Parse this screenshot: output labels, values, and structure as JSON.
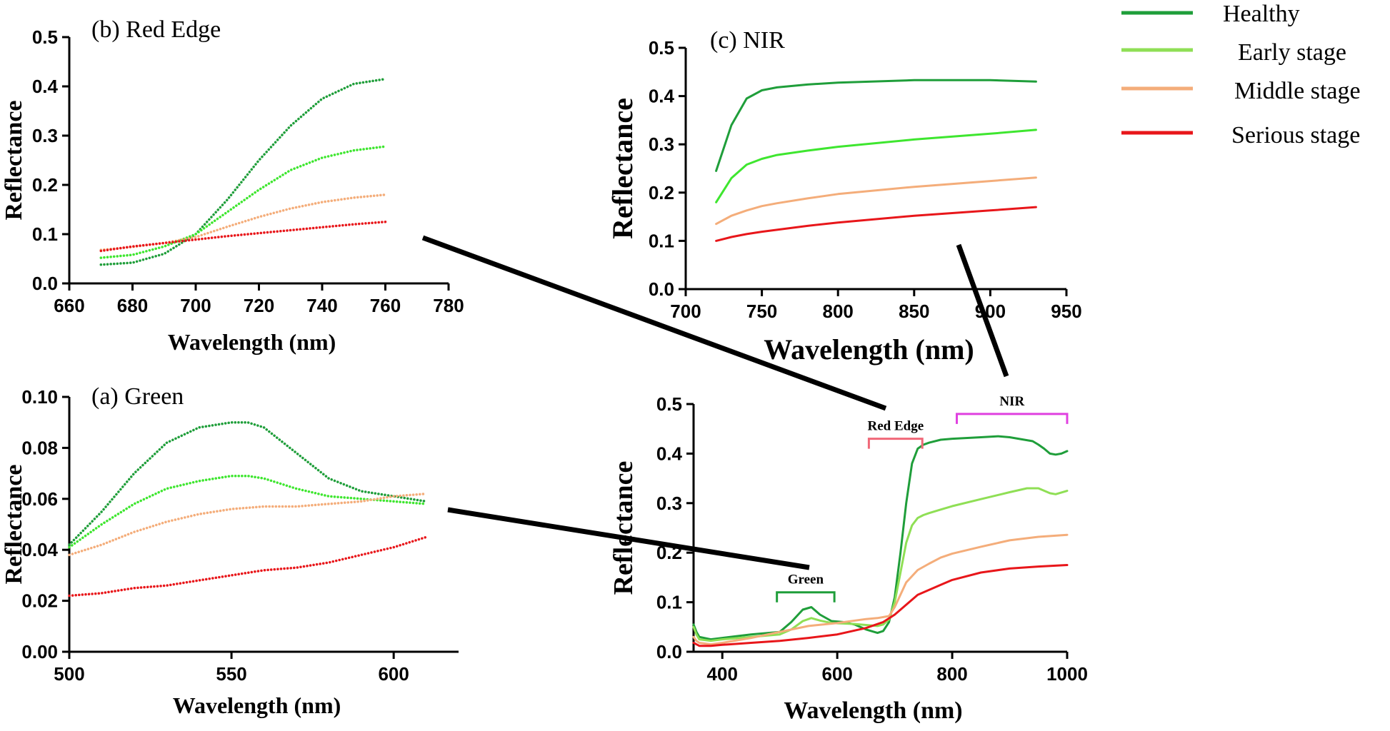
{
  "legend": {
    "entries": [
      {
        "label": "Healthy",
        "color": "#1f9e3a"
      },
      {
        "label": "Early stage",
        "color": "#8fdf55"
      },
      {
        "label": "Middle stage",
        "color": "#f4ad7a"
      },
      {
        "label": "Serious stage",
        "color": "#e8161a"
      }
    ]
  },
  "chart_data": [
    {
      "id": "red_edge",
      "type": "line",
      "title": "(b) Red Edge",
      "xlabel": "Wavelength (nm)",
      "ylabel": "Reflectance",
      "xlim": [
        660,
        780
      ],
      "ylim": [
        0,
        0.5
      ],
      "xticks": [
        "660",
        "680",
        "700",
        "720",
        "740",
        "760",
        "780"
      ],
      "yticks": [
        "0.0",
        "0.1",
        "0.2",
        "0.3",
        "0.4",
        "0.5"
      ],
      "line_style": "dotted",
      "series": [
        {
          "legend_index": 0,
          "color": "#1f9e3a",
          "x": [
            670,
            680,
            690,
            700,
            710,
            720,
            730,
            740,
            750,
            760
          ],
          "y": [
            0.038,
            0.042,
            0.06,
            0.1,
            0.17,
            0.25,
            0.32,
            0.375,
            0.405,
            0.415
          ]
        },
        {
          "legend_index": 1,
          "color": "#3ee62f",
          "x": [
            670,
            680,
            690,
            700,
            710,
            720,
            730,
            740,
            750,
            760
          ],
          "y": [
            0.052,
            0.058,
            0.075,
            0.1,
            0.145,
            0.19,
            0.23,
            0.255,
            0.27,
            0.278
          ]
        },
        {
          "legend_index": 2,
          "color": "#f4ad7a",
          "x": [
            670,
            680,
            690,
            700,
            710,
            720,
            730,
            740,
            750,
            760
          ],
          "y": [
            0.068,
            0.074,
            0.082,
            0.094,
            0.115,
            0.135,
            0.152,
            0.165,
            0.174,
            0.18
          ]
        },
        {
          "legend_index": 3,
          "color": "#e8161a",
          "x": [
            670,
            680,
            690,
            700,
            710,
            720,
            730,
            740,
            750,
            760
          ],
          "y": [
            0.066,
            0.075,
            0.082,
            0.089,
            0.096,
            0.102,
            0.108,
            0.114,
            0.12,
            0.125
          ]
        }
      ]
    },
    {
      "id": "nir",
      "type": "line",
      "title": "(c) NIR",
      "xlabel": "Wavelength (nm)",
      "ylabel": "Reflectance",
      "xlim": [
        700,
        950
      ],
      "ylim": [
        0,
        0.5
      ],
      "xticks": [
        "700",
        "750",
        "800",
        "850",
        "900",
        "950"
      ],
      "yticks": [
        "0.0",
        "0.1",
        "0.2",
        "0.3",
        "0.4",
        "0.5"
      ],
      "line_style": "solid",
      "series": [
        {
          "legend_index": 0,
          "color": "#1f9e3a",
          "x": [
            720,
            730,
            740,
            750,
            760,
            780,
            800,
            850,
            900,
            930
          ],
          "y": [
            0.245,
            0.34,
            0.395,
            0.412,
            0.418,
            0.424,
            0.428,
            0.433,
            0.433,
            0.43
          ]
        },
        {
          "legend_index": 1,
          "color": "#3ee62f",
          "x": [
            720,
            730,
            740,
            750,
            760,
            780,
            800,
            850,
            900,
            930
          ],
          "y": [
            0.18,
            0.23,
            0.258,
            0.27,
            0.278,
            0.287,
            0.295,
            0.31,
            0.322,
            0.33
          ]
        },
        {
          "legend_index": 2,
          "color": "#f4ad7a",
          "x": [
            720,
            730,
            740,
            750,
            760,
            780,
            800,
            850,
            900,
            930
          ],
          "y": [
            0.135,
            0.152,
            0.163,
            0.172,
            0.178,
            0.188,
            0.197,
            0.212,
            0.224,
            0.231
          ]
        },
        {
          "legend_index": 3,
          "color": "#e8161a",
          "x": [
            720,
            730,
            740,
            750,
            760,
            780,
            800,
            850,
            900,
            930
          ],
          "y": [
            0.1,
            0.108,
            0.114,
            0.119,
            0.123,
            0.131,
            0.138,
            0.152,
            0.163,
            0.17
          ]
        }
      ]
    },
    {
      "id": "green",
      "type": "line",
      "title": "(a) Green",
      "xlabel": "Wavelength (nm)",
      "ylabel": "Reflectance",
      "xlim": [
        500,
        620
      ],
      "ylim": [
        0,
        0.1
      ],
      "xticks": [
        "500",
        "550",
        "600"
      ],
      "yticks": [
        "0.00",
        "0.02",
        "0.04",
        "0.06",
        "0.08",
        "0.10"
      ],
      "line_style": "dotted",
      "series": [
        {
          "legend_index": 0,
          "color": "#1f9e3a",
          "x": [
            500,
            510,
            520,
            530,
            540,
            550,
            555,
            560,
            570,
            580,
            590,
            600,
            610
          ],
          "y": [
            0.042,
            0.055,
            0.07,
            0.082,
            0.088,
            0.09,
            0.09,
            0.088,
            0.078,
            0.068,
            0.063,
            0.061,
            0.059
          ]
        },
        {
          "legend_index": 1,
          "color": "#3ee62f",
          "x": [
            500,
            510,
            520,
            530,
            540,
            550,
            555,
            560,
            570,
            580,
            590,
            600,
            610
          ],
          "y": [
            0.041,
            0.05,
            0.058,
            0.064,
            0.067,
            0.069,
            0.069,
            0.068,
            0.064,
            0.061,
            0.06,
            0.059,
            0.058
          ]
        },
        {
          "legend_index": 2,
          "color": "#f4ad7a",
          "x": [
            500,
            510,
            520,
            530,
            540,
            550,
            560,
            570,
            580,
            590,
            600,
            610
          ],
          "y": [
            0.038,
            0.042,
            0.047,
            0.051,
            0.054,
            0.056,
            0.057,
            0.057,
            0.058,
            0.059,
            0.061,
            0.062
          ]
        },
        {
          "legend_index": 3,
          "color": "#e8161a",
          "x": [
            500,
            510,
            520,
            530,
            540,
            550,
            560,
            570,
            580,
            590,
            600,
            610
          ],
          "y": [
            0.022,
            0.023,
            0.025,
            0.026,
            0.028,
            0.03,
            0.032,
            0.033,
            0.035,
            0.038,
            0.041,
            0.045
          ]
        }
      ]
    },
    {
      "id": "full",
      "type": "line",
      "title": "",
      "xlabel": "Wavelength (nm)",
      "ylabel": "Reflectance",
      "xlim": [
        350,
        1000
      ],
      "ylim": [
        0,
        0.5
      ],
      "xticks": [
        "400",
        "600",
        "800",
        "1000"
      ],
      "yticks": [
        "0.0",
        "0.1",
        "0.2",
        "0.3",
        "0.4",
        "0.5"
      ],
      "line_style": "solid",
      "annotations": [
        {
          "label": "Green",
          "x_range": [
            495,
            595
          ],
          "y": 0.12,
          "color": "#1f9e3a"
        },
        {
          "label": "Red Edge",
          "x_range": [
            655,
            748
          ],
          "y": 0.43,
          "color": "#f06878"
        },
        {
          "label": "NIR",
          "x_range": [
            808,
            1000
          ],
          "y": 0.48,
          "color": "#e040e0"
        }
      ],
      "series": [
        {
          "legend_index": 0,
          "color": "#1f9e3a",
          "x": [
            350,
            355,
            360,
            380,
            400,
            450,
            500,
            520,
            540,
            555,
            570,
            590,
            610,
            630,
            650,
            670,
            680,
            690,
            700,
            710,
            720,
            730,
            740,
            750,
            760,
            780,
            800,
            850,
            880,
            900,
            940,
            950,
            960,
            970,
            980,
            990,
            1000
          ],
          "y": [
            0.055,
            0.04,
            0.03,
            0.025,
            0.028,
            0.035,
            0.04,
            0.06,
            0.085,
            0.09,
            0.075,
            0.062,
            0.06,
            0.055,
            0.045,
            0.038,
            0.042,
            0.06,
            0.11,
            0.2,
            0.3,
            0.38,
            0.41,
            0.418,
            0.422,
            0.428,
            0.43,
            0.433,
            0.435,
            0.433,
            0.425,
            0.418,
            0.41,
            0.4,
            0.398,
            0.4,
            0.405
          ]
        },
        {
          "legend_index": 1,
          "color": "#8fdf55",
          "x": [
            350,
            355,
            360,
            380,
            400,
            450,
            500,
            520,
            540,
            555,
            570,
            590,
            610,
            630,
            650,
            670,
            680,
            690,
            700,
            710,
            720,
            730,
            740,
            750,
            760,
            780,
            800,
            850,
            900,
            930,
            950,
            970,
            980,
            1000
          ],
          "y": [
            0.05,
            0.035,
            0.025,
            0.022,
            0.025,
            0.03,
            0.035,
            0.045,
            0.062,
            0.068,
            0.063,
            0.058,
            0.057,
            0.056,
            0.054,
            0.052,
            0.055,
            0.065,
            0.1,
            0.16,
            0.22,
            0.255,
            0.27,
            0.276,
            0.28,
            0.287,
            0.294,
            0.308,
            0.322,
            0.33,
            0.33,
            0.32,
            0.318,
            0.325
          ]
        },
        {
          "legend_index": 2,
          "color": "#f4ad7a",
          "x": [
            350,
            355,
            360,
            380,
            400,
            450,
            500,
            550,
            600,
            650,
            670,
            690,
            700,
            720,
            740,
            760,
            780,
            800,
            850,
            900,
            950,
            1000
          ],
          "y": [
            0.03,
            0.022,
            0.018,
            0.015,
            0.018,
            0.028,
            0.04,
            0.052,
            0.058,
            0.066,
            0.068,
            0.072,
            0.09,
            0.14,
            0.165,
            0.178,
            0.19,
            0.198,
            0.212,
            0.225,
            0.232,
            0.236
          ]
        },
        {
          "legend_index": 3,
          "color": "#e8161a",
          "x": [
            350,
            355,
            360,
            380,
            400,
            450,
            500,
            550,
            600,
            650,
            680,
            700,
            720,
            740,
            760,
            780,
            800,
            850,
            900,
            950,
            1000
          ],
          "y": [
            0.018,
            0.015,
            0.012,
            0.012,
            0.014,
            0.018,
            0.022,
            0.028,
            0.035,
            0.048,
            0.06,
            0.075,
            0.095,
            0.115,
            0.125,
            0.135,
            0.145,
            0.16,
            0.168,
            0.172,
            0.175
          ]
        }
      ]
    }
  ]
}
